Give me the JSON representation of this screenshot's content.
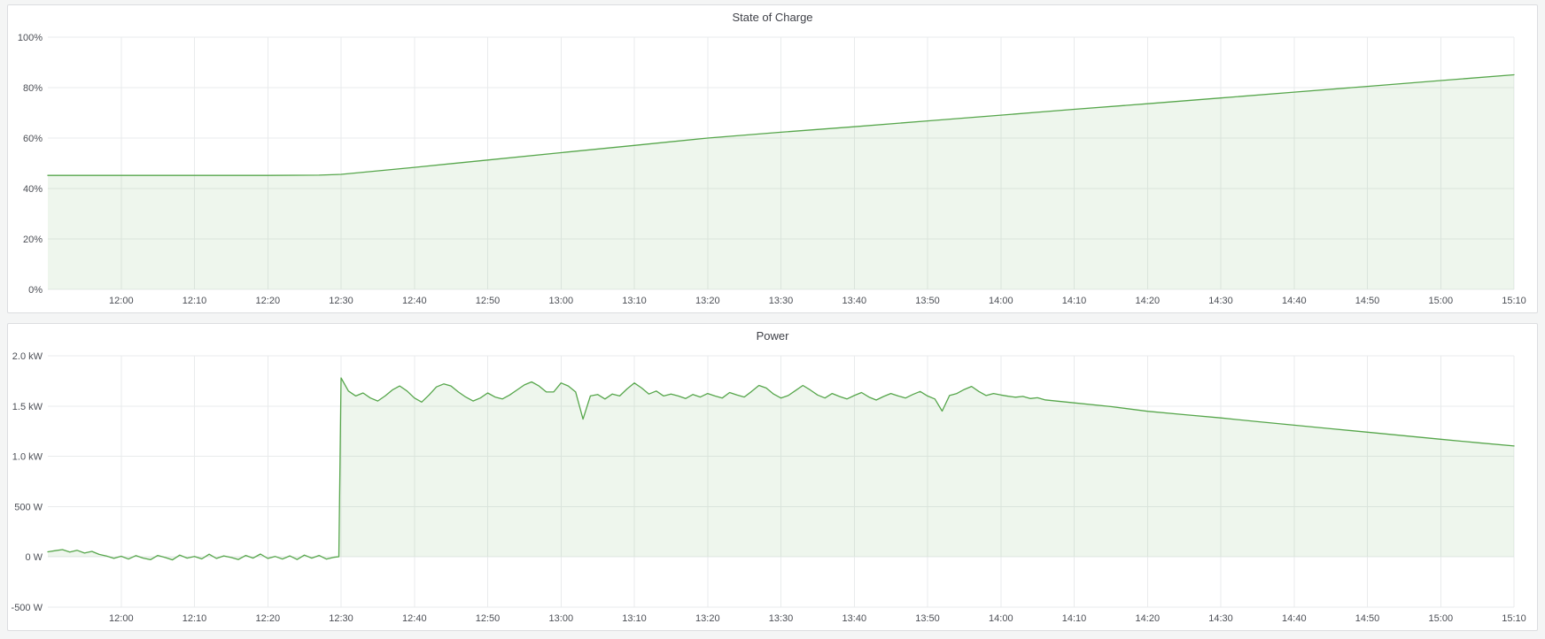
{
  "page": {
    "background": "#f4f5f5",
    "panel_background": "#ffffff",
    "panel_border_color": "#dcdde0",
    "accent_green": "#56a64b"
  },
  "chart_data": [
    {
      "type": "area",
      "title": "State of Charge",
      "ylabel": "",
      "xlabel": "",
      "legend": "none",
      "grid": true,
      "line_color": "#56a64b",
      "fill_color": "rgba(86,166,75,0.10)",
      "xlim": [
        -10,
        190
      ],
      "ylim": [
        0,
        100
      ],
      "baseline": 0,
      "x_ticks": {
        "values": [
          0,
          10,
          20,
          30,
          40,
          50,
          60,
          70,
          80,
          90,
          100,
          110,
          120,
          130,
          140,
          150,
          160,
          170,
          180,
          190
        ],
        "labels": [
          "12:00",
          "12:10",
          "12:20",
          "12:30",
          "12:40",
          "12:50",
          "13:00",
          "13:10",
          "13:20",
          "13:30",
          "13:40",
          "13:50",
          "14:00",
          "14:10",
          "14:20",
          "14:30",
          "14:40",
          "14:50",
          "15:00",
          "15:10"
        ]
      },
      "y_ticks": {
        "values": [
          0,
          20,
          40,
          60,
          80,
          100
        ],
        "labels": [
          "0%",
          "20%",
          "40%",
          "60%",
          "80%",
          "100%"
        ]
      },
      "points": [
        [
          -10,
          45.2
        ],
        [
          0,
          45.2
        ],
        [
          10,
          45.2
        ],
        [
          20,
          45.2
        ],
        [
          27,
          45.3
        ],
        [
          30,
          45.6
        ],
        [
          40,
          48.4
        ],
        [
          50,
          51.3
        ],
        [
          60,
          54.2
        ],
        [
          70,
          57.1
        ],
        [
          80,
          60.0
        ],
        [
          90,
          62.3
        ],
        [
          100,
          64.5
        ],
        [
          110,
          66.8
        ],
        [
          120,
          69.1
        ],
        [
          130,
          71.4
        ],
        [
          140,
          73.6
        ],
        [
          150,
          75.9
        ],
        [
          160,
          78.2
        ],
        [
          170,
          80.5
        ],
        [
          180,
          82.8
        ],
        [
          190,
          85.1
        ]
      ]
    },
    {
      "type": "area",
      "title": "Power",
      "ylabel": "",
      "xlabel": "",
      "legend": "none",
      "grid": true,
      "line_color": "#56a64b",
      "fill_color": "rgba(86,166,75,0.10)",
      "xlim": [
        -10,
        190
      ],
      "ylim": [
        -500,
        2000
      ],
      "baseline": 0,
      "x_ticks": {
        "values": [
          0,
          10,
          20,
          30,
          40,
          50,
          60,
          70,
          80,
          90,
          100,
          110,
          120,
          130,
          140,
          150,
          160,
          170,
          180,
          190
        ],
        "labels": [
          "12:00",
          "12:10",
          "12:20",
          "12:30",
          "12:40",
          "12:50",
          "13:00",
          "13:10",
          "13:20",
          "13:30",
          "13:40",
          "13:50",
          "14:00",
          "14:10",
          "14:20",
          "14:30",
          "14:40",
          "14:50",
          "15:00",
          "15:10"
        ]
      },
      "y_ticks": {
        "values": [
          -500,
          0,
          500,
          1000,
          1500,
          2000
        ],
        "labels": [
          "-500 W",
          "0 W",
          "500 W",
          "1.0 kW",
          "1.5 kW",
          "2.0 kW"
        ]
      },
      "points": [
        [
          -10,
          50
        ],
        [
          -9,
          62
        ],
        [
          -8,
          72
        ],
        [
          -7,
          48
        ],
        [
          -6,
          65
        ],
        [
          -5,
          38
        ],
        [
          -4,
          55
        ],
        [
          -3,
          25
        ],
        [
          -2,
          8
        ],
        [
          -1,
          -15
        ],
        [
          0,
          6
        ],
        [
          1,
          -22
        ],
        [
          2,
          12
        ],
        [
          3,
          -12
        ],
        [
          4,
          -28
        ],
        [
          5,
          14
        ],
        [
          6,
          -6
        ],
        [
          7,
          -30
        ],
        [
          8,
          18
        ],
        [
          9,
          -12
        ],
        [
          10,
          4
        ],
        [
          11,
          -20
        ],
        [
          12,
          26
        ],
        [
          13,
          -16
        ],
        [
          14,
          10
        ],
        [
          15,
          -6
        ],
        [
          16,
          -26
        ],
        [
          17,
          14
        ],
        [
          18,
          -12
        ],
        [
          19,
          28
        ],
        [
          20,
          -16
        ],
        [
          21,
          4
        ],
        [
          22,
          -22
        ],
        [
          23,
          10
        ],
        [
          24,
          -26
        ],
        [
          25,
          18
        ],
        [
          26,
          -12
        ],
        [
          27,
          14
        ],
        [
          28,
          -22
        ],
        [
          29,
          -4
        ],
        [
          29.7,
          2
        ],
        [
          30,
          1780
        ],
        [
          31,
          1650
        ],
        [
          32,
          1600
        ],
        [
          33,
          1630
        ],
        [
          34,
          1580
        ],
        [
          35,
          1550
        ],
        [
          36,
          1600
        ],
        [
          37,
          1660
        ],
        [
          38,
          1700
        ],
        [
          39,
          1650
        ],
        [
          40,
          1580
        ],
        [
          41,
          1540
        ],
        [
          42,
          1610
        ],
        [
          43,
          1690
        ],
        [
          44,
          1720
        ],
        [
          45,
          1700
        ],
        [
          46,
          1640
        ],
        [
          47,
          1590
        ],
        [
          48,
          1550
        ],
        [
          49,
          1580
        ],
        [
          50,
          1630
        ],
        [
          51,
          1590
        ],
        [
          52,
          1570
        ],
        [
          53,
          1610
        ],
        [
          54,
          1660
        ],
        [
          55,
          1710
        ],
        [
          56,
          1740
        ],
        [
          57,
          1700
        ],
        [
          58,
          1640
        ],
        [
          59,
          1640
        ],
        [
          60,
          1730
        ],
        [
          61,
          1700
        ],
        [
          62,
          1640
        ],
        [
          63,
          1370
        ],
        [
          64,
          1600
        ],
        [
          65,
          1615
        ],
        [
          66,
          1570
        ],
        [
          67,
          1620
        ],
        [
          68,
          1600
        ],
        [
          69,
          1670
        ],
        [
          70,
          1730
        ],
        [
          71,
          1680
        ],
        [
          72,
          1620
        ],
        [
          73,
          1650
        ],
        [
          74,
          1600
        ],
        [
          75,
          1620
        ],
        [
          76,
          1600
        ],
        [
          77,
          1575
        ],
        [
          78,
          1615
        ],
        [
          79,
          1590
        ],
        [
          80,
          1625
        ],
        [
          81,
          1600
        ],
        [
          82,
          1580
        ],
        [
          83,
          1635
        ],
        [
          84,
          1610
        ],
        [
          85,
          1590
        ],
        [
          86,
          1645
        ],
        [
          87,
          1705
        ],
        [
          88,
          1680
        ],
        [
          89,
          1620
        ],
        [
          90,
          1580
        ],
        [
          91,
          1605
        ],
        [
          92,
          1655
        ],
        [
          93,
          1705
        ],
        [
          94,
          1660
        ],
        [
          95,
          1610
        ],
        [
          96,
          1580
        ],
        [
          97,
          1625
        ],
        [
          98,
          1595
        ],
        [
          99,
          1570
        ],
        [
          100,
          1605
        ],
        [
          101,
          1635
        ],
        [
          102,
          1590
        ],
        [
          103,
          1560
        ],
        [
          104,
          1595
        ],
        [
          105,
          1625
        ],
        [
          106,
          1600
        ],
        [
          107,
          1580
        ],
        [
          108,
          1615
        ],
        [
          109,
          1645
        ],
        [
          110,
          1600
        ],
        [
          111,
          1570
        ],
        [
          112,
          1450
        ],
        [
          113,
          1605
        ],
        [
          114,
          1625
        ],
        [
          115,
          1665
        ],
        [
          116,
          1695
        ],
        [
          117,
          1645
        ],
        [
          118,
          1605
        ],
        [
          119,
          1625
        ],
        [
          120,
          1610
        ],
        [
          121,
          1598
        ],
        [
          122,
          1588
        ],
        [
          123,
          1596
        ],
        [
          124,
          1575
        ],
        [
          125,
          1583
        ],
        [
          126,
          1562
        ],
        [
          130,
          1532
        ],
        [
          135,
          1495
        ],
        [
          140,
          1448
        ],
        [
          145,
          1415
        ],
        [
          150,
          1382
        ],
        [
          155,
          1345
        ],
        [
          160,
          1310
        ],
        [
          165,
          1275
        ],
        [
          170,
          1240
        ],
        [
          175,
          1205
        ],
        [
          180,
          1170
        ],
        [
          185,
          1136
        ],
        [
          190,
          1103
        ]
      ]
    }
  ]
}
